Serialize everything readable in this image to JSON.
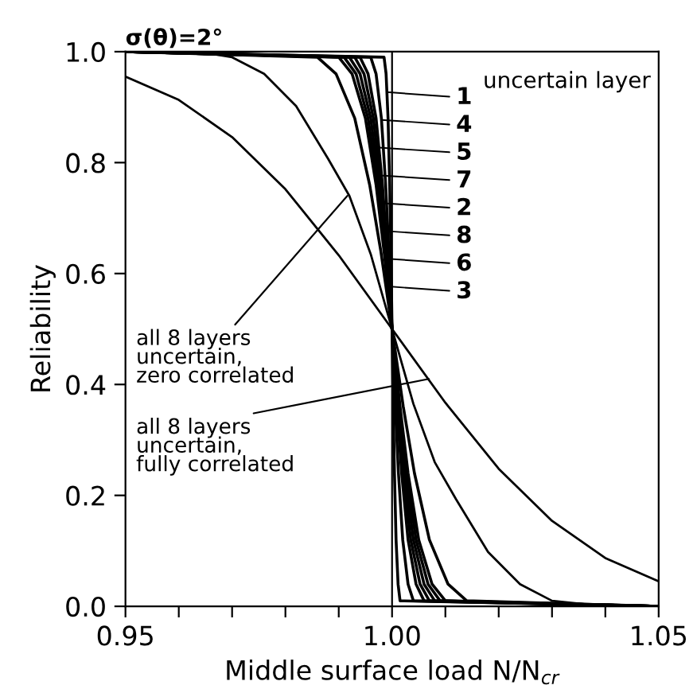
{
  "chart_data": {
    "type": "line",
    "title": "σ(θ)=2°",
    "xlabel": "Middle surface load N/N$_{cr}$",
    "ylabel": "Reliability",
    "legend_title": "uncertain layer",
    "annotations": [
      {
        "text": "all 8 layers\nuncertain,\nfully correlated",
        "x": 1.0069,
        "y": 0.41
      },
      {
        "text": "all 8 layers\nuncertain,\nzero correlated",
        "x": 0.9916,
        "y": 0.74
      }
    ],
    "xlim": [
      0.95,
      1.05
    ],
    "ylim": [
      0,
      1.0
    ],
    "xticks": [
      {
        "value": 0.95,
        "label": "0.95"
      },
      {
        "value": 0.96,
        "label": null
      },
      {
        "value": 0.97,
        "label": null
      },
      {
        "value": 0.98,
        "label": null
      },
      {
        "value": 0.99,
        "label": null
      },
      {
        "value": 1.0,
        "label": "1.00"
      },
      {
        "value": 1.01,
        "label": null
      },
      {
        "value": 1.02,
        "label": null
      },
      {
        "value": 1.03,
        "label": null
      },
      {
        "value": 1.04,
        "label": null
      },
      {
        "value": 1.05,
        "label": "1.05"
      }
    ],
    "yticks": [
      {
        "value": 0,
        "label": "0.0"
      },
      {
        "value": 0.2,
        "label": "0.2"
      },
      {
        "value": 0.4,
        "label": "0.4"
      },
      {
        "value": 0.6,
        "label": "0.6"
      },
      {
        "value": 0.8,
        "label": "0.8"
      },
      {
        "value": 1.0,
        "label": "1.0"
      }
    ],
    "grid": false,
    "legend": "top right",
    "marker": "none",
    "line_style": "solid",
    "ref_lines": [
      {
        "axis": "x",
        "value": 1.0,
        "color": "#000000"
      }
    ],
    "series": [
      {
        "color": "#000000",
        "x": [
          0.95,
          0.96,
          0.97,
          0.98,
          0.99,
          1.0,
          1.01,
          1.02,
          1.03,
          1.04,
          1.05
        ],
        "values": [
          0.955,
          0.913,
          0.846,
          0.752,
          0.633,
          0.5,
          0.367,
          0.248,
          0.154,
          0.087,
          0.045
        ]
      },
      {
        "color": "#000000",
        "x": [
          0.95,
          0.965,
          0.97,
          0.976,
          0.982,
          0.988,
          0.992,
          0.996,
          1.0,
          1.004,
          1.008,
          1.012,
          1.018,
          1.024,
          1.03,
          1.035,
          1.04,
          1.05
        ],
        "values": [
          1.0,
          0.998,
          0.99,
          0.96,
          0.902,
          0.807,
          0.74,
          0.635,
          0.5,
          0.365,
          0.26,
          0.193,
          0.098,
          0.04,
          0.01,
          0.005,
          0.0,
          0.0
        ]
      },
      {
        "name": "1",
        "color": "#000000",
        "x": [
          0.95,
          0.9985,
          0.99888,
          0.99925,
          0.99955,
          0.99978,
          1.0,
          1.00022,
          1.00045,
          1.00075,
          1.00113,
          1.0015,
          1.05
        ],
        "values": [
          1.0,
          0.99,
          0.96,
          0.88,
          0.76,
          0.64,
          0.5,
          0.36,
          0.24,
          0.12,
          0.04,
          0.01,
          0.0
        ]
      },
      {
        "name": "4",
        "color": "#000000",
        "x": [
          0.95,
          0.996,
          0.997,
          0.998,
          0.9988,
          0.9994,
          1.0,
          1.0006,
          1.0012,
          1.002,
          1.003,
          1.004,
          1.05
        ],
        "values": [
          1.0,
          0.99,
          0.96,
          0.88,
          0.76,
          0.64,
          0.5,
          0.36,
          0.24,
          0.12,
          0.04,
          0.01,
          0.0
        ]
      },
      {
        "name": "5",
        "color": "#000000",
        "x": [
          0.95,
          0.994,
          0.9955,
          0.997,
          0.9982,
          0.9991,
          1.0,
          1.0009,
          1.0018,
          1.003,
          1.0045,
          1.006,
          1.05
        ],
        "values": [
          1.0,
          0.99,
          0.96,
          0.88,
          0.76,
          0.64,
          0.5,
          0.36,
          0.24,
          0.12,
          0.04,
          0.01,
          0.0
        ]
      },
      {
        "name": "7",
        "color": "#000000",
        "x": [
          0.95,
          0.993,
          0.99475,
          0.9965,
          0.9979,
          0.99895,
          1.0,
          1.00105,
          1.0021,
          1.0035,
          1.00525,
          1.007,
          1.05
        ],
        "values": [
          1.0,
          0.99,
          0.96,
          0.88,
          0.76,
          0.64,
          0.5,
          0.36,
          0.24,
          0.12,
          0.04,
          0.01,
          0.0
        ]
      },
      {
        "name": "2",
        "color": "#000000",
        "x": [
          0.95,
          0.992,
          0.994,
          0.996,
          0.9976,
          0.9988,
          1.0,
          1.0012,
          1.0024,
          1.004,
          1.006,
          1.008,
          1.05
        ],
        "values": [
          1.0,
          0.99,
          0.96,
          0.88,
          0.76,
          0.64,
          0.5,
          0.36,
          0.24,
          0.12,
          0.04,
          0.01,
          0.0
        ]
      },
      {
        "name": "8",
        "color": "#000000",
        "x": [
          0.95,
          0.991,
          0.99325,
          0.9955,
          0.9973,
          0.99865,
          1.0,
          1.00135,
          1.0027,
          1.0045,
          1.00675,
          1.009,
          1.05
        ],
        "values": [
          1.0,
          0.99,
          0.96,
          0.88,
          0.76,
          0.64,
          0.5,
          0.36,
          0.24,
          0.12,
          0.04,
          0.01,
          0.0
        ]
      },
      {
        "name": "6",
        "color": "#000000",
        "x": [
          0.95,
          0.99,
          0.9925,
          0.995,
          0.997,
          0.9985,
          1.0,
          1.0015,
          1.003,
          1.005,
          1.0075,
          1.01,
          1.05
        ],
        "values": [
          1.0,
          0.99,
          0.96,
          0.88,
          0.76,
          0.64,
          0.5,
          0.36,
          0.24,
          0.12,
          0.04,
          0.01,
          0.0
        ]
      },
      {
        "name": "3",
        "color": "#000000",
        "x": [
          0.95,
          0.986,
          0.9895,
          0.993,
          0.9958,
          0.9979,
          1.0,
          1.0021,
          1.0042,
          1.007,
          1.0105,
          1.014,
          1.05
        ],
        "values": [
          1.0,
          0.99,
          0.96,
          0.88,
          0.76,
          0.64,
          0.5,
          0.36,
          0.24,
          0.12,
          0.04,
          0.01,
          0.0
        ]
      }
    ]
  }
}
